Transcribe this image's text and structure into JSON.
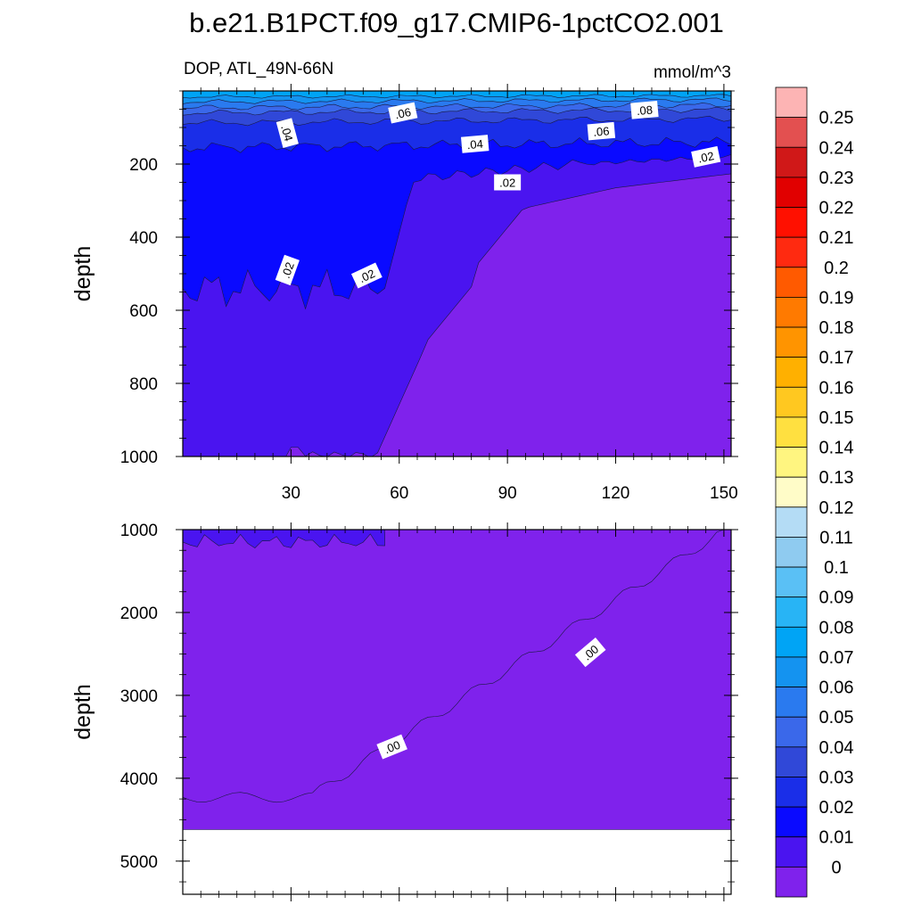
{
  "chart_data": {
    "type": "contour",
    "title": "b.e21.B1PCT.f09_g17.CMIP6-1pctCO2.001",
    "left_subtitle": "DOP, ATL_49N-66N",
    "right_subtitle": "mmol/m^3",
    "colorbar": {
      "levels": [
        "0.25",
        "0.24",
        "0.23",
        "0.22",
        "0.21",
        "0.2",
        "0.19",
        "0.18",
        "0.17",
        "0.16",
        "0.15",
        "0.14",
        "0.13",
        "0.12",
        "0.11",
        "0.1",
        "0.09",
        "0.08",
        "0.07",
        "0.06",
        "0.05",
        "0.04",
        "0.03",
        "0.02",
        "0.01",
        "0"
      ],
      "colors": [
        "#fdb4b4",
        "#e35050",
        "#d01818",
        "#e10000",
        "#ff1000",
        "#ff2a10",
        "#ff5a00",
        "#ff7a00",
        "#ff9400",
        "#ffb000",
        "#ffc820",
        "#ffe040",
        "#fff580",
        "#fffcc8",
        "#b4dcf5",
        "#8fcbf0",
        "#5ac0f5",
        "#28b4f5",
        "#00a4f5",
        "#1493f0",
        "#2a7aef",
        "#3a68ea",
        "#3048d8",
        "#1a2ee8",
        "#0a0aff",
        "#4a14f0",
        "#7f22ec"
      ]
    },
    "panels": [
      {
        "name": "upper",
        "x_range": [
          0,
          152
        ],
        "y_range": [
          0,
          1000
        ],
        "x_ticks": [
          "30",
          "60",
          "90",
          "120",
          "150"
        ],
        "x_tick_values": [
          30,
          60,
          90,
          120,
          150
        ],
        "y_ticks": [
          "200",
          "400",
          "600",
          "800",
          "1000"
        ],
        "y_tick_values": [
          200,
          400,
          600,
          800,
          1000
        ],
        "ylabel": "depth",
        "contour_labels": [
          {
            "text": ".06",
            "x": 61,
            "y": 60,
            "angle": -12
          },
          {
            "text": ".08",
            "x": 128,
            "y": 52,
            "angle": -5
          },
          {
            "text": ".04",
            "x": 29,
            "y": 115,
            "angle": 75
          },
          {
            "text": ".06",
            "x": 116,
            "y": 110,
            "angle": -5
          },
          {
            "text": ".04",
            "x": 81,
            "y": 145,
            "angle": -5
          },
          {
            "text": ".02",
            "x": 145,
            "y": 180,
            "angle": -12
          },
          {
            "text": ".02",
            "x": 90,
            "y": 250,
            "angle": 0
          },
          {
            "text": ".02",
            "x": 29,
            "y": 490,
            "angle": -70
          },
          {
            "text": ".02",
            "x": 51,
            "y": 505,
            "angle": -25
          }
        ]
      },
      {
        "name": "lower",
        "x_range": [
          0,
          152
        ],
        "y_range": [
          1000,
          5400
        ],
        "y_ticks": [
          "1000",
          "2000",
          "3000",
          "4000",
          "5000"
        ],
        "y_tick_values": [
          1000,
          2000,
          3000,
          4000,
          5000
        ],
        "ylabel": "depth",
        "ocean_floor_depth": 4620,
        "contour_labels": [
          {
            "text": ".00",
            "x": 113,
            "y": 2480,
            "angle": -40
          },
          {
            "text": ".00",
            "x": 58,
            "y": 3620,
            "angle": -22
          }
        ]
      }
    ]
  }
}
